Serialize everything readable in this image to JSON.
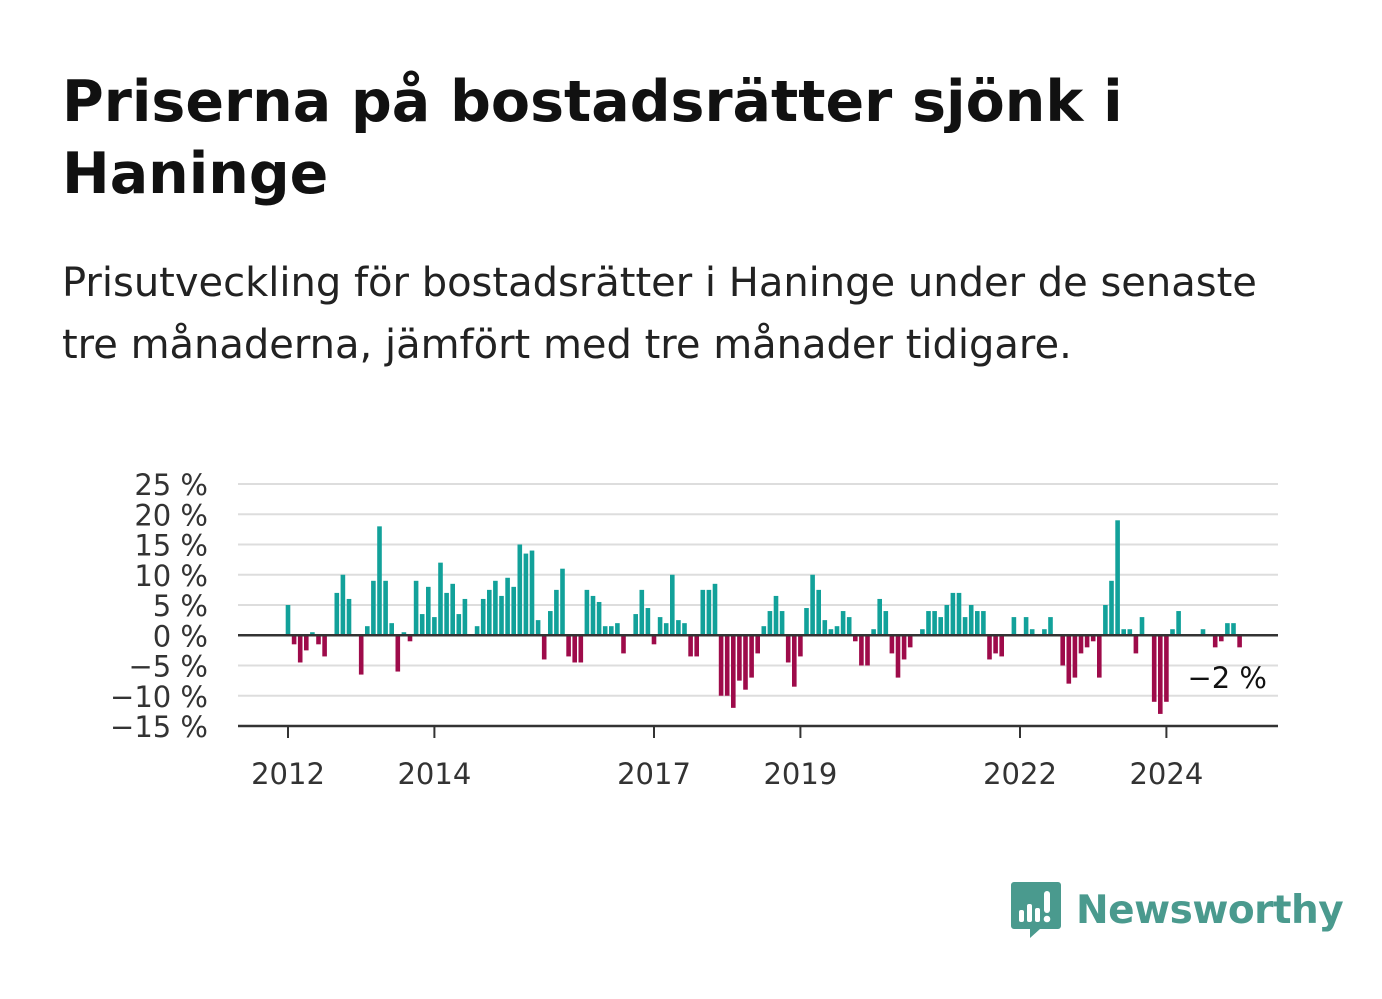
{
  "title": "Priserna på bostadsrätter sjönk i Haninge",
  "subtitle": "Prisutveckling för bostadsrätter i Haninge under de senaste tre månaderna, jämfört med tre månader tidigare.",
  "brand": {
    "name": "Newsworthy",
    "icon": "newsworthy-logo-icon",
    "color": "#4a9a8e"
  },
  "colors": {
    "positive": "#12a19a",
    "negative": "#9e0b4a",
    "grid": "#dddddd",
    "axis": "#333333"
  },
  "chart_data": {
    "type": "bar",
    "unit": "%",
    "ylim": [
      -15,
      25
    ],
    "yticks": [
      {
        "value": 25,
        "label": "25 %"
      },
      {
        "value": 20,
        "label": "20 %"
      },
      {
        "value": 15,
        "label": "15 %"
      },
      {
        "value": 10,
        "label": "10 %"
      },
      {
        "value": 5,
        "label": "5 %"
      },
      {
        "value": 0,
        "label": "0 %"
      },
      {
        "value": -5,
        "label": "−5 %"
      },
      {
        "value": -10,
        "label": "−10 %"
      },
      {
        "value": -15,
        "label": "−15 %"
      }
    ],
    "xticks": [
      "2012",
      "2014",
      "2017",
      "2019",
      "2022",
      "2024"
    ],
    "xtick_years": [
      2012,
      2014,
      2017,
      2019,
      2022,
      2024
    ],
    "start": "2012-01",
    "grid": true,
    "last_value_label": "−2 %",
    "values": [
      5,
      -1.5,
      -4.5,
      -2.5,
      0.5,
      -1.5,
      -3.5,
      0,
      7,
      10,
      6,
      0,
      -6.5,
      1.5,
      9,
      18,
      9,
      2,
      -6,
      0.5,
      -1,
      9,
      3.5,
      8,
      3,
      12,
      7,
      8.5,
      3.5,
      6,
      0,
      1.5,
      6,
      7.5,
      9,
      6.5,
      9.5,
      8,
      15,
      13.5,
      14,
      2.5,
      -4,
      4,
      7.5,
      11,
      -3.5,
      -4.5,
      -4.5,
      7.5,
      6.5,
      5.5,
      1.5,
      1.5,
      2,
      -3,
      0,
      3.5,
      7.5,
      4.5,
      -1.5,
      3,
      2,
      10,
      2.5,
      2,
      -3.5,
      -3.5,
      7.5,
      7.5,
      8.5,
      -10,
      -10,
      -12,
      -7.5,
      -9,
      -7,
      -3,
      1.5,
      4,
      6.5,
      4,
      -4.5,
      -8.5,
      -3.5,
      4.5,
      10,
      7.5,
      2.5,
      1,
      1.5,
      4,
      3,
      -1,
      -5,
      -5,
      1,
      6,
      4,
      -3,
      -7,
      -4,
      -2,
      0,
      1,
      4,
      4,
      3,
      5,
      7,
      7,
      3,
      5,
      4,
      4,
      -4,
      -3,
      -3.5,
      0,
      3,
      0,
      3,
      1,
      0,
      1,
      3,
      0,
      -5,
      -8,
      -7,
      -3,
      -2,
      -1,
      -7,
      5,
      9,
      19,
      1,
      1,
      -3,
      3,
      0,
      -11,
      -13,
      -11,
      1,
      4,
      0,
      0,
      0,
      1,
      0,
      -2,
      -1,
      2,
      2,
      -2
    ]
  }
}
